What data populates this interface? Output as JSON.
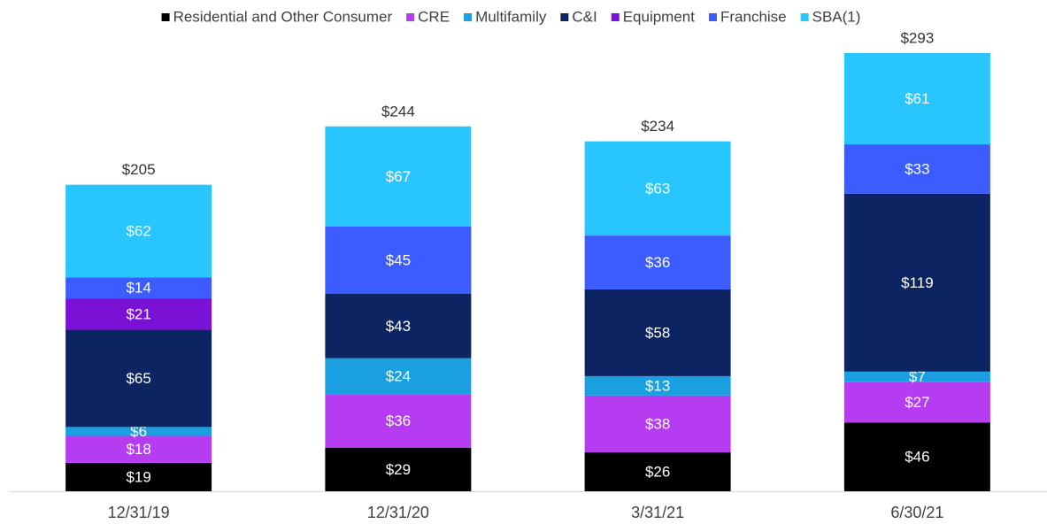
{
  "chart_data": {
    "type": "stacked_bar",
    "categories": [
      "12/31/19",
      "12/31/20",
      "3/31/21",
      "6/30/21"
    ],
    "series": [
      {
        "name": "Residential and Other Consumer",
        "color": "#000000",
        "values": [
          19,
          29,
          26,
          46
        ],
        "value_labels": [
          "$19",
          "$29",
          "$26",
          "$46"
        ]
      },
      {
        "name": "CRE",
        "color": "#b63cf2",
        "values": [
          18,
          36,
          38,
          27
        ],
        "value_labels": [
          "$18",
          "$36",
          "$38",
          "$27"
        ]
      },
      {
        "name": "Multifamily",
        "color": "#1a9fe0",
        "values": [
          6,
          24,
          13,
          7
        ],
        "value_labels": [
          "$6",
          "$24",
          "$13",
          "$7"
        ]
      },
      {
        "name": "C&I",
        "color": "#0c2461",
        "values": [
          65,
          43,
          58,
          119
        ],
        "value_labels": [
          "$65",
          "$43",
          "$58",
          "$119"
        ]
      },
      {
        "name": "Equipment",
        "color": "#7a12d6",
        "values": [
          21,
          null,
          null,
          null
        ],
        "value_labels": [
          "$21",
          null,
          null,
          null
        ]
      },
      {
        "name": "Franchise",
        "color": "#3d5cff",
        "values": [
          14,
          45,
          36,
          33
        ],
        "value_labels": [
          "$14",
          "$45",
          "$36",
          "$33"
        ]
      },
      {
        "name": "SBA(1)",
        "color": "#29c5ff",
        "values": [
          62,
          67,
          63,
          61
        ],
        "value_labels": [
          "$62",
          "$67",
          "$63",
          "$61"
        ]
      }
    ],
    "totals": {
      "values": [
        205,
        244,
        234,
        293
      ],
      "value_labels": [
        "$205",
        "$244",
        "$234",
        "$293"
      ]
    }
  }
}
